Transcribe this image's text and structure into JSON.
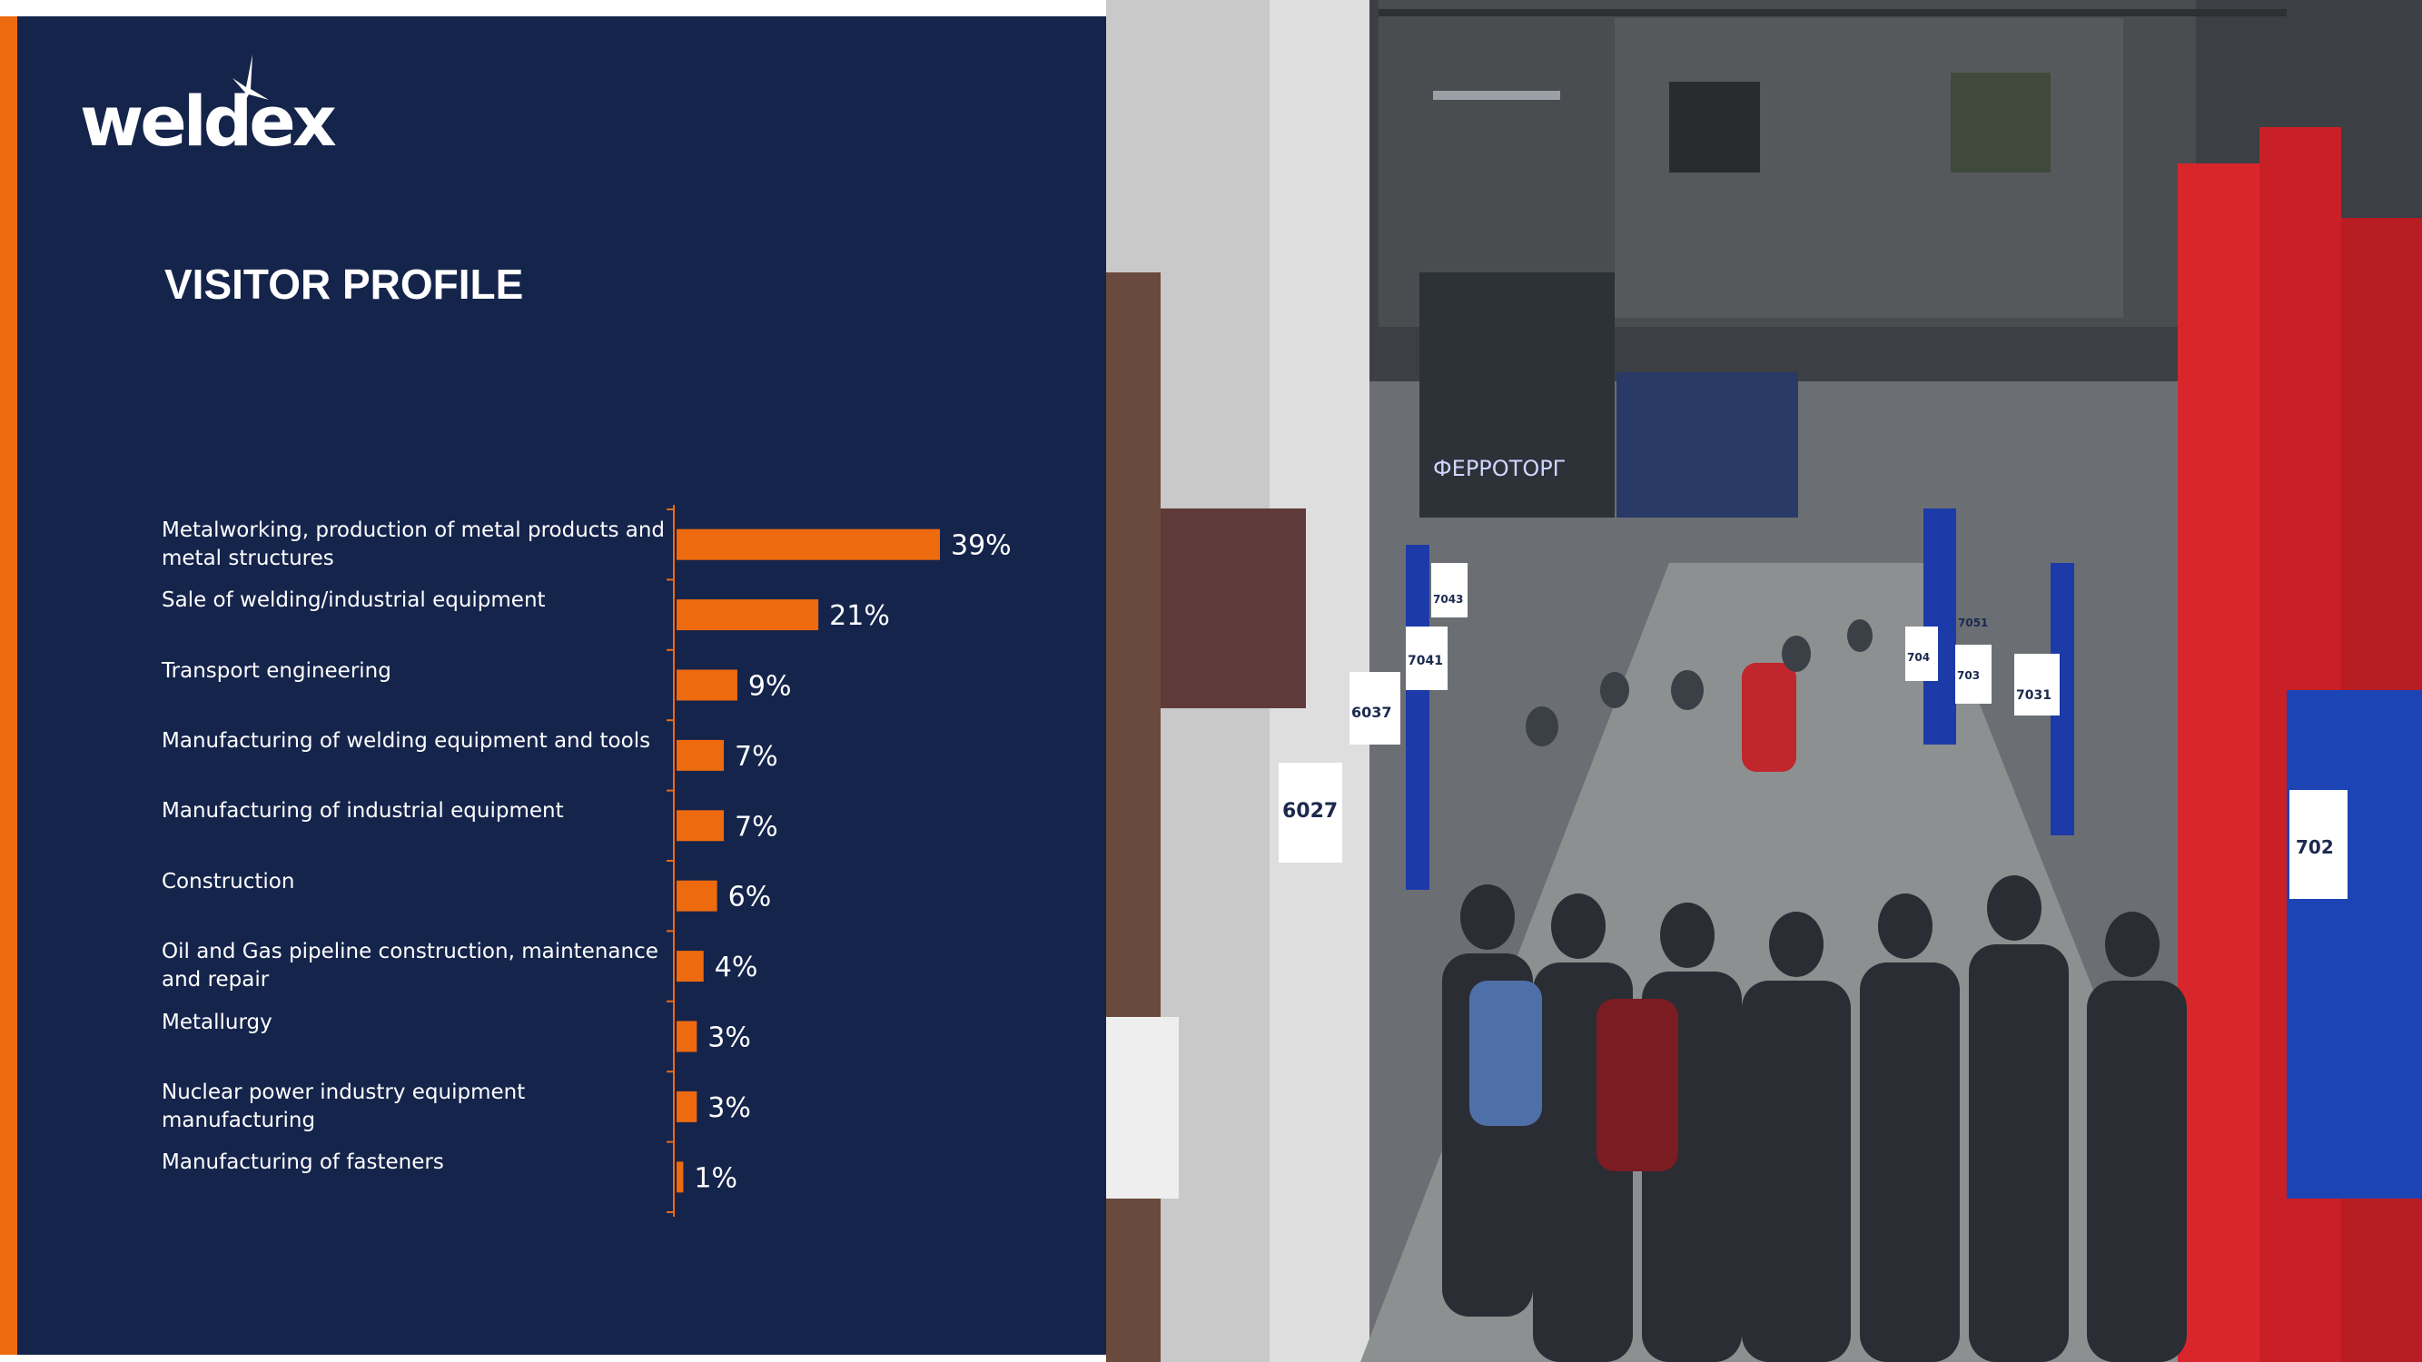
{
  "brand": {
    "logo_text": "weldex"
  },
  "slide": {
    "title": "VISITOR PROFILE"
  },
  "colors": {
    "panel": "#15244b",
    "accent": "#ee6a0f",
    "text": "#ffffff",
    "booth_red": "#d9262c"
  },
  "chart_data": {
    "type": "bar",
    "orientation": "horizontal",
    "categories": [
      "Metalworking, production of metal products and metal structures",
      "Sale of welding/industrial equipment",
      "Transport engineering",
      "Manufacturing of welding equipment and tools",
      "Manufacturing of industrial equipment",
      "Construction",
      "Oil and Gas pipeline construction, maintenance and repair",
      "Metallurgy",
      "Nuclear power industry equipment manufacturing",
      "Manufacturing of fasteners"
    ],
    "values": [
      39,
      21,
      9,
      7,
      7,
      6,
      4,
      3,
      3,
      1
    ],
    "value_labels": [
      "39%",
      "21%",
      "9%",
      "7%",
      "7%",
      "6%",
      "4%",
      "3%",
      "3%",
      "1%"
    ],
    "unit": "%",
    "grid": false,
    "legend": "none"
  },
  "photo": {
    "booth_numbers": [
      "6027",
      "6037",
      "7041",
      "7043",
      "704",
      "7051",
      "703",
      "7031",
      "702"
    ],
    "signage": "ФЕРРОТОРГ"
  }
}
